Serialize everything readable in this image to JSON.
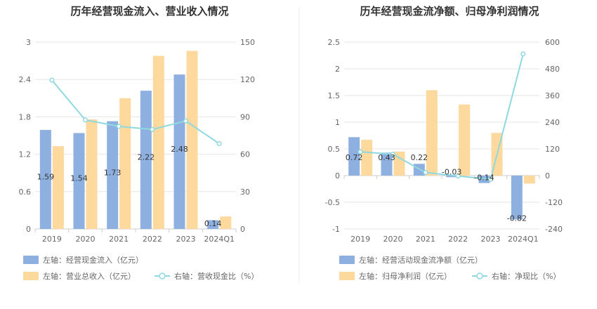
{
  "left_panel": {
    "title": "历年经营现金流入、营业收入情况",
    "legend": [
      "左轴：经营现金流入（亿元）",
      "左轴：营业总收入（亿元）",
      "右轴：营收现金比（%）"
    ]
  },
  "right_panel": {
    "title": "历年经营现金流净额、归母净利润情况",
    "legend": [
      "左轴：经营活动现金流净额（亿元）",
      "左轴：归母净利润（亿元）",
      "右轴：净现比（%）"
    ]
  },
  "colors": {
    "bar_blue": "#8eb0e0",
    "bar_orange": "#fdd99e",
    "line_cyan": "#8ed9df",
    "grid": "#e6e6e6",
    "axis": "#cccccc"
  },
  "chart_data": [
    {
      "type": "bar",
      "title": "历年经营现金流入、营业收入情况",
      "categories": [
        "2019",
        "2020",
        "2021",
        "2022",
        "2023",
        "2024Q1"
      ],
      "left_axis": {
        "ticks": [
          "0",
          "0.6",
          "1.2",
          "1.8",
          "2.4",
          "3"
        ],
        "min": 0,
        "max": 3
      },
      "right_axis": {
        "ticks": [
          "0",
          "30",
          "60",
          "90",
          "120",
          "150"
        ],
        "min": 0,
        "max": 150
      },
      "series": [
        {
          "name": "左轴：经营现金流入（亿元）",
          "type": "bar",
          "axis": "left",
          "values": [
            1.59,
            1.54,
            1.73,
            2.22,
            2.48,
            0.14
          ],
          "labels": [
            "1.59",
            "1.54",
            "1.73",
            "2.22",
            "2.48",
            "0.14"
          ]
        },
        {
          "name": "左轴：营业总收入（亿元）",
          "type": "bar",
          "axis": "left",
          "values": [
            1.33,
            1.76,
            2.1,
            2.78,
            2.86,
            0.2
          ]
        },
        {
          "name": "右轴：营收现金比（%）",
          "type": "line",
          "axis": "right",
          "values": [
            119.5,
            87.5,
            82.4,
            79.9,
            86.7,
            68.5
          ]
        }
      ]
    },
    {
      "type": "bar",
      "title": "历年经营现金流净额、归母净利润情况",
      "categories": [
        "2019",
        "2020",
        "2021",
        "2022",
        "2023",
        "2024Q1"
      ],
      "left_axis": {
        "ticks": [
          "-1",
          "-0.5",
          "0",
          "0.5",
          "1",
          "1.5",
          "2",
          "2.5"
        ],
        "min": -1,
        "max": 2.5
      },
      "right_axis": {
        "ticks": [
          "-240",
          "-120",
          "0",
          "120",
          "240",
          "360",
          "480",
          "600"
        ],
        "min": -240,
        "max": 600
      },
      "series": [
        {
          "name": "左轴：经营活动现金流净额（亿元）",
          "type": "bar",
          "axis": "left",
          "values": [
            0.72,
            0.43,
            0.22,
            -0.03,
            -0.14,
            -0.82
          ],
          "labels": [
            "0.72",
            "0.43",
            "0.22",
            "-0.03",
            "-0.14",
            "-0.82"
          ]
        },
        {
          "name": "左轴：归母净利润（亿元）",
          "type": "bar",
          "axis": "left",
          "values": [
            0.67,
            0.45,
            1.6,
            1.33,
            0.8,
            -0.15
          ]
        },
        {
          "name": "右轴：净现比（%）",
          "type": "line",
          "axis": "right",
          "values": [
            107,
            96,
            14,
            -2,
            -17,
            547
          ]
        }
      ]
    }
  ]
}
